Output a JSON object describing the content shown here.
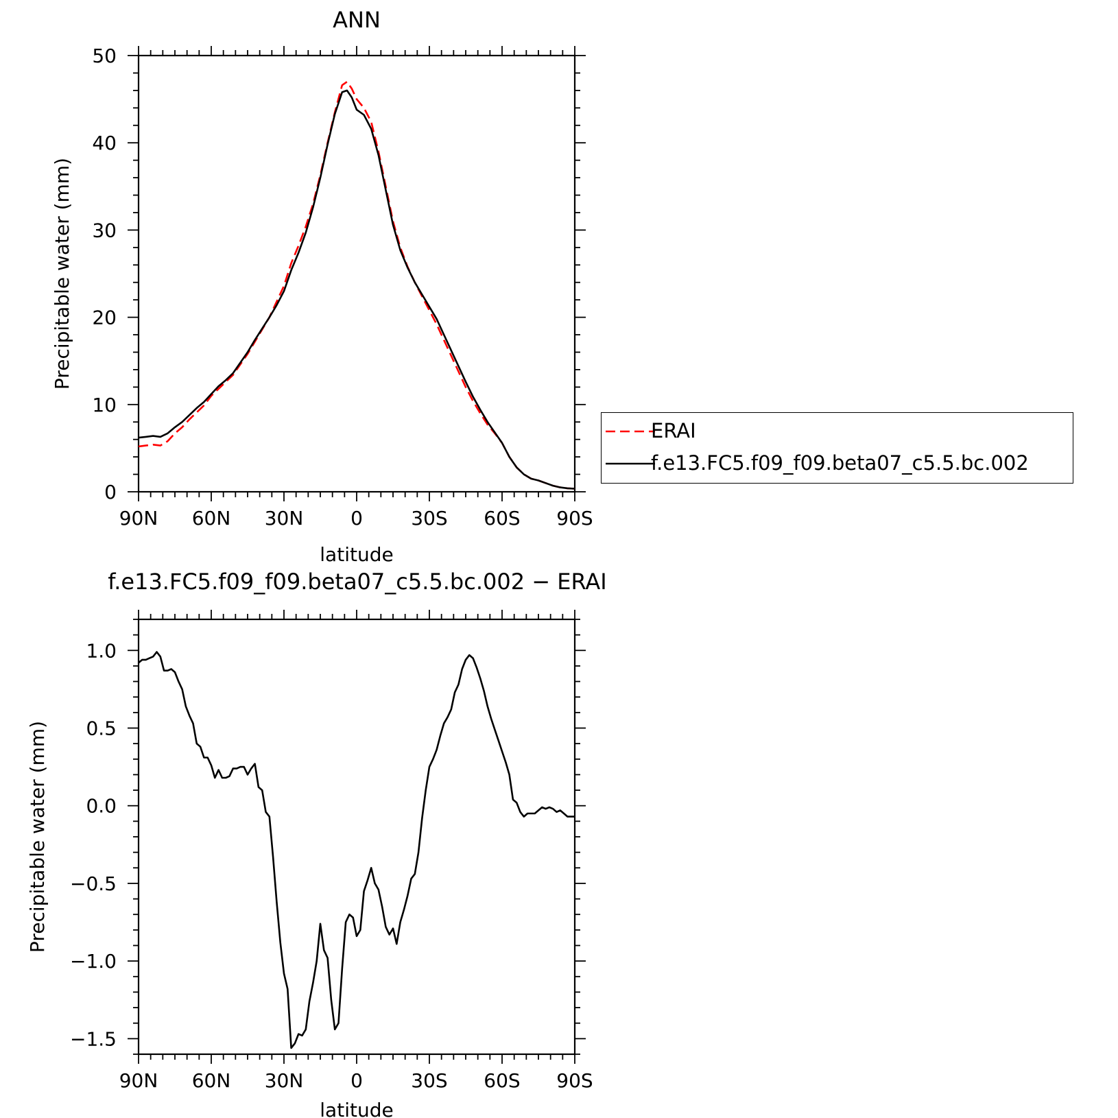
{
  "chart_data": [
    {
      "type": "line",
      "title": "ANN",
      "xlabel": "latitude",
      "ylabel": "Precipitable water (mm)",
      "x_ticks": [
        "90N",
        "60N",
        "30N",
        "0",
        "30S",
        "60S",
        "90S"
      ],
      "y_ticks": [
        "0",
        "10",
        "20",
        "30",
        "40",
        "50"
      ],
      "xlim": [
        90,
        -90
      ],
      "ylim": [
        0,
        50
      ],
      "grid": false,
      "legend_position": "right, outside plot area",
      "series": [
        {
          "name": "ERAI",
          "color": "#ff0000",
          "style": "dashed",
          "x": [
            90,
            87,
            84,
            81,
            78,
            75,
            72,
            69,
            66,
            63,
            60,
            57,
            54,
            51,
            48,
            45,
            42,
            39,
            36,
            33,
            30,
            27,
            24,
            21,
            18,
            15,
            12,
            9,
            6,
            4,
            2,
            0,
            -3,
            -6,
            -9,
            -12,
            -15,
            -18,
            -21,
            -24,
            -27,
            -30,
            -33,
            -36,
            -39,
            -42,
            -45,
            -48,
            -51,
            -54,
            -57,
            -60,
            -63,
            -66,
            -69,
            -72,
            -75,
            -78,
            -81,
            -84,
            -87,
            -90
          ],
          "y": [
            5.2,
            5.3,
            5.4,
            5.3,
            5.8,
            6.7,
            7.4,
            8.3,
            9.1,
            9.9,
            11.0,
            11.8,
            12.6,
            13.4,
            14.6,
            15.8,
            17.2,
            18.6,
            20.0,
            21.8,
            23.6,
            26.2,
            28.2,
            30.4,
            33.0,
            36.3,
            40.0,
            43.5,
            46.6,
            47.0,
            46.2,
            45.0,
            44.0,
            42.4,
            39.0,
            35.0,
            31.0,
            28.0,
            25.8,
            24.0,
            22.4,
            20.8,
            19.2,
            17.4,
            15.6,
            13.8,
            12.0,
            10.4,
            9.0,
            7.7,
            6.7,
            5.6,
            4.0,
            2.8,
            2.0,
            1.5,
            1.3,
            1.0,
            0.7,
            0.5,
            0.4,
            0.35
          ]
        },
        {
          "name": "f.e13.FC5.f09_f09.beta07_c5.5.bc.002",
          "color": "#000000",
          "style": "solid",
          "x": [
            90,
            87,
            84,
            81,
            78,
            75,
            72,
            69,
            66,
            63,
            60,
            57,
            54,
            51,
            48,
            45,
            42,
            39,
            36,
            33,
            30,
            27,
            24,
            21,
            18,
            15,
            12,
            9,
            6,
            4,
            2,
            0,
            -3,
            -6,
            -9,
            -12,
            -15,
            -18,
            -21,
            -24,
            -27,
            -30,
            -33,
            -36,
            -39,
            -42,
            -45,
            -48,
            -51,
            -54,
            -57,
            -60,
            -63,
            -66,
            -69,
            -72,
            -75,
            -78,
            -81,
            -84,
            -87,
            -90
          ],
          "y": [
            6.2,
            6.3,
            6.4,
            6.3,
            6.7,
            7.4,
            8.0,
            8.8,
            9.6,
            10.3,
            11.2,
            12.1,
            12.8,
            13.6,
            14.8,
            16.0,
            17.4,
            18.7,
            20.0,
            21.4,
            23.0,
            25.4,
            27.4,
            29.7,
            32.6,
            36.0,
            39.8,
            43.3,
            45.8,
            46.0,
            45.2,
            43.8,
            43.2,
            41.6,
            38.6,
            34.6,
            30.6,
            27.7,
            25.7,
            24.0,
            22.6,
            21.2,
            19.8,
            18.0,
            16.2,
            14.4,
            12.6,
            10.9,
            9.4,
            8.0,
            6.8,
            5.6,
            4.0,
            2.8,
            2.0,
            1.5,
            1.3,
            1.0,
            0.7,
            0.5,
            0.4,
            0.35
          ]
        }
      ]
    },
    {
      "type": "line",
      "title": "f.e13.FC5.f09_f09.beta07_c5.5.bc.002 − ERAI",
      "xlabel": "latitude",
      "ylabel": "Precipitable water (mm)",
      "x_ticks": [
        "90N",
        "60N",
        "30N",
        "0",
        "30S",
        "60S",
        "90S"
      ],
      "y_ticks": [
        "−1.5",
        "−1.0",
        "−0.5",
        "0.0",
        "0.5",
        "1.0"
      ],
      "xlim": [
        90,
        -90
      ],
      "ylim": [
        -1.6,
        1.2
      ],
      "grid": false,
      "series": [
        {
          "color": "#000000",
          "style": "solid",
          "x": [
            90,
            88.5,
            87,
            85.5,
            84,
            82.5,
            81,
            79.5,
            78,
            76.5,
            75,
            73.5,
            72,
            70.5,
            69,
            67.5,
            66,
            64.5,
            63,
            61.5,
            60,
            58.5,
            57,
            55.5,
            54,
            52.5,
            51,
            49.5,
            48,
            46.5,
            45,
            43.5,
            42,
            40.5,
            39,
            37.5,
            36,
            34.5,
            33,
            31.5,
            30,
            28.5,
            27,
            25.5,
            24,
            22.5,
            21,
            19.5,
            18,
            16.5,
            15,
            13.5,
            12,
            10.5,
            9,
            7.5,
            6,
            4.5,
            3,
            1.5,
            0,
            -1.5,
            -3,
            -4.5,
            -6,
            -7.5,
            -9,
            -10.5,
            -12,
            -13.5,
            -15,
            -16.5,
            -18,
            -19.5,
            -21,
            -22.5,
            -24,
            -25.5,
            -27,
            -28.5,
            -30,
            -31.5,
            -33,
            -34.5,
            -36,
            -37.5,
            -39,
            -40.5,
            -42,
            -43.5,
            -45,
            -46.5,
            -48,
            -49.5,
            -51,
            -52.5,
            -54,
            -55.5,
            -57,
            -58.5,
            -60,
            -61.5,
            -63,
            -64.5,
            -66,
            -67.5,
            -69,
            -70.5,
            -72,
            -73.5,
            -75,
            -76.5,
            -78,
            -79.5,
            -81,
            -82.5,
            -84,
            -85.5,
            -87,
            -88.5,
            -90
          ],
          "y": [
            0.92,
            0.94,
            0.94,
            0.95,
            0.96,
            0.99,
            0.96,
            0.87,
            0.87,
            0.88,
            0.86,
            0.8,
            0.75,
            0.64,
            0.58,
            0.53,
            0.4,
            0.38,
            0.31,
            0.31,
            0.26,
            0.18,
            0.23,
            0.18,
            0.18,
            0.19,
            0.24,
            0.24,
            0.25,
            0.25,
            0.2,
            0.24,
            0.27,
            0.12,
            0.1,
            -0.04,
            -0.07,
            -0.33,
            -0.62,
            -0.88,
            -1.08,
            -1.18,
            -1.56,
            -1.53,
            -1.47,
            -1.48,
            -1.44,
            -1.26,
            -1.14,
            -1.0,
            -0.76,
            -0.93,
            -0.98,
            -1.25,
            -1.44,
            -1.4,
            -1.05,
            -0.75,
            -0.7,
            -0.72,
            -0.84,
            -0.8,
            -0.55,
            -0.48,
            -0.4,
            -0.5,
            -0.54,
            -0.65,
            -0.78,
            -0.83,
            -0.79,
            -0.89,
            -0.75,
            -0.67,
            -0.58,
            -0.47,
            -0.44,
            -0.3,
            -0.08,
            0.1,
            0.25,
            0.3,
            0.36,
            0.45,
            0.53,
            0.57,
            0.62,
            0.73,
            0.78,
            0.88,
            0.94,
            0.97,
            0.95,
            0.89,
            0.82,
            0.74,
            0.64,
            0.56,
            0.49,
            0.42,
            0.35,
            0.28,
            0.2,
            0.04,
            0.02,
            -0.04,
            -0.07,
            -0.05,
            -0.05,
            -0.05,
            -0.03,
            -0.01,
            -0.02,
            -0.01,
            -0.02,
            -0.04,
            -0.03,
            -0.05,
            -0.07,
            -0.07,
            -0.07
          ]
        }
      ]
    }
  ]
}
